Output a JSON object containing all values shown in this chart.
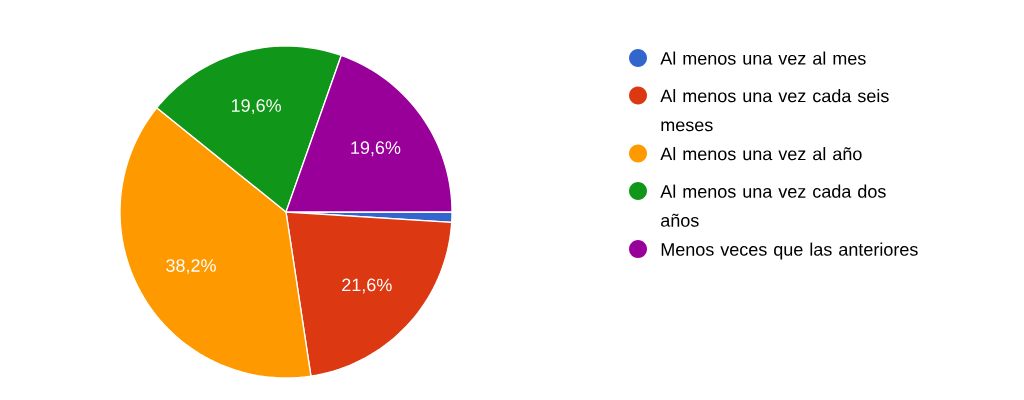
{
  "chart_data": {
    "type": "pie",
    "categories": [
      "Al menos una vez al mes",
      "Al menos una vez cada seis meses",
      "Al menos una vez al año",
      "Al menos una vez cada dos años",
      "Menos veces que las anteriores"
    ],
    "values": [
      1.0,
      21.6,
      38.2,
      19.6,
      19.6
    ],
    "colors": [
      "#3366cc",
      "#dc3912",
      "#ff9900",
      "#109618",
      "#990099"
    ],
    "value_labels": [
      null,
      "21,6%",
      "38,2%",
      "19,6%",
      "19,6%"
    ],
    "legend": "right"
  }
}
